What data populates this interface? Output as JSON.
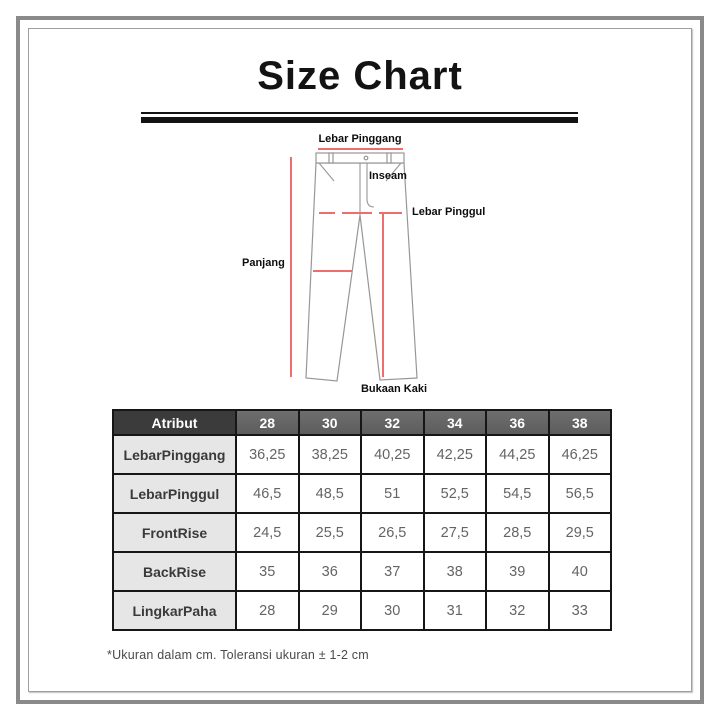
{
  "title": "Size Chart",
  "diagram": {
    "labels": {
      "waist": "Lebar Pinggang",
      "inseam": "Inseam",
      "hip": "Lebar Pinggul",
      "length": "Panjang",
      "leg_opening": "Bukaan Kaki"
    },
    "colors": {
      "measure_line": "#ee6d6d",
      "outline": "#979797"
    }
  },
  "table": {
    "header": [
      "Atribut",
      "28",
      "30",
      "32",
      "34",
      "36",
      "38"
    ],
    "rows": [
      {
        "label": "LebarPinggang",
        "values": [
          "36,25",
          "38,25",
          "40,25",
          "42,25",
          "44,25",
          "46,25"
        ]
      },
      {
        "label": "LebarPinggul",
        "values": [
          "46,5",
          "48,5",
          "51",
          "52,5",
          "54,5",
          "56,5"
        ]
      },
      {
        "label": "FrontRise",
        "values": [
          "24,5",
          "25,5",
          "26,5",
          "27,5",
          "28,5",
          "29,5"
        ]
      },
      {
        "label": "BackRise",
        "values": [
          "35",
          "36",
          "37",
          "38",
          "39",
          "40"
        ]
      },
      {
        "label": "LingkarPaha",
        "values": [
          "28",
          "29",
          "30",
          "31",
          "32",
          "33"
        ]
      }
    ],
    "footnote": "*Ukuran dalam cm. Toleransi ukuran ± 1-2 cm"
  },
  "chart_data": {
    "type": "table",
    "title": "Size Chart",
    "columns": [
      "Atribut",
      "28",
      "30",
      "32",
      "34",
      "36",
      "38"
    ],
    "rows": [
      [
        "LebarPinggang",
        36.25,
        38.25,
        40.25,
        42.25,
        44.25,
        46.25
      ],
      [
        "LebarPinggul",
        46.5,
        48.5,
        51,
        52.5,
        54.5,
        56.5
      ],
      [
        "FrontRise",
        24.5,
        25.5,
        26.5,
        27.5,
        28.5,
        29.5
      ],
      [
        "BackRise",
        35,
        36,
        37,
        38,
        39,
        40
      ],
      [
        "LingkarPaha",
        28,
        29,
        30,
        31,
        32,
        33
      ]
    ],
    "units": "cm",
    "note": "*Ukuran dalam cm. Toleransi ukuran ± 1-2 cm"
  }
}
